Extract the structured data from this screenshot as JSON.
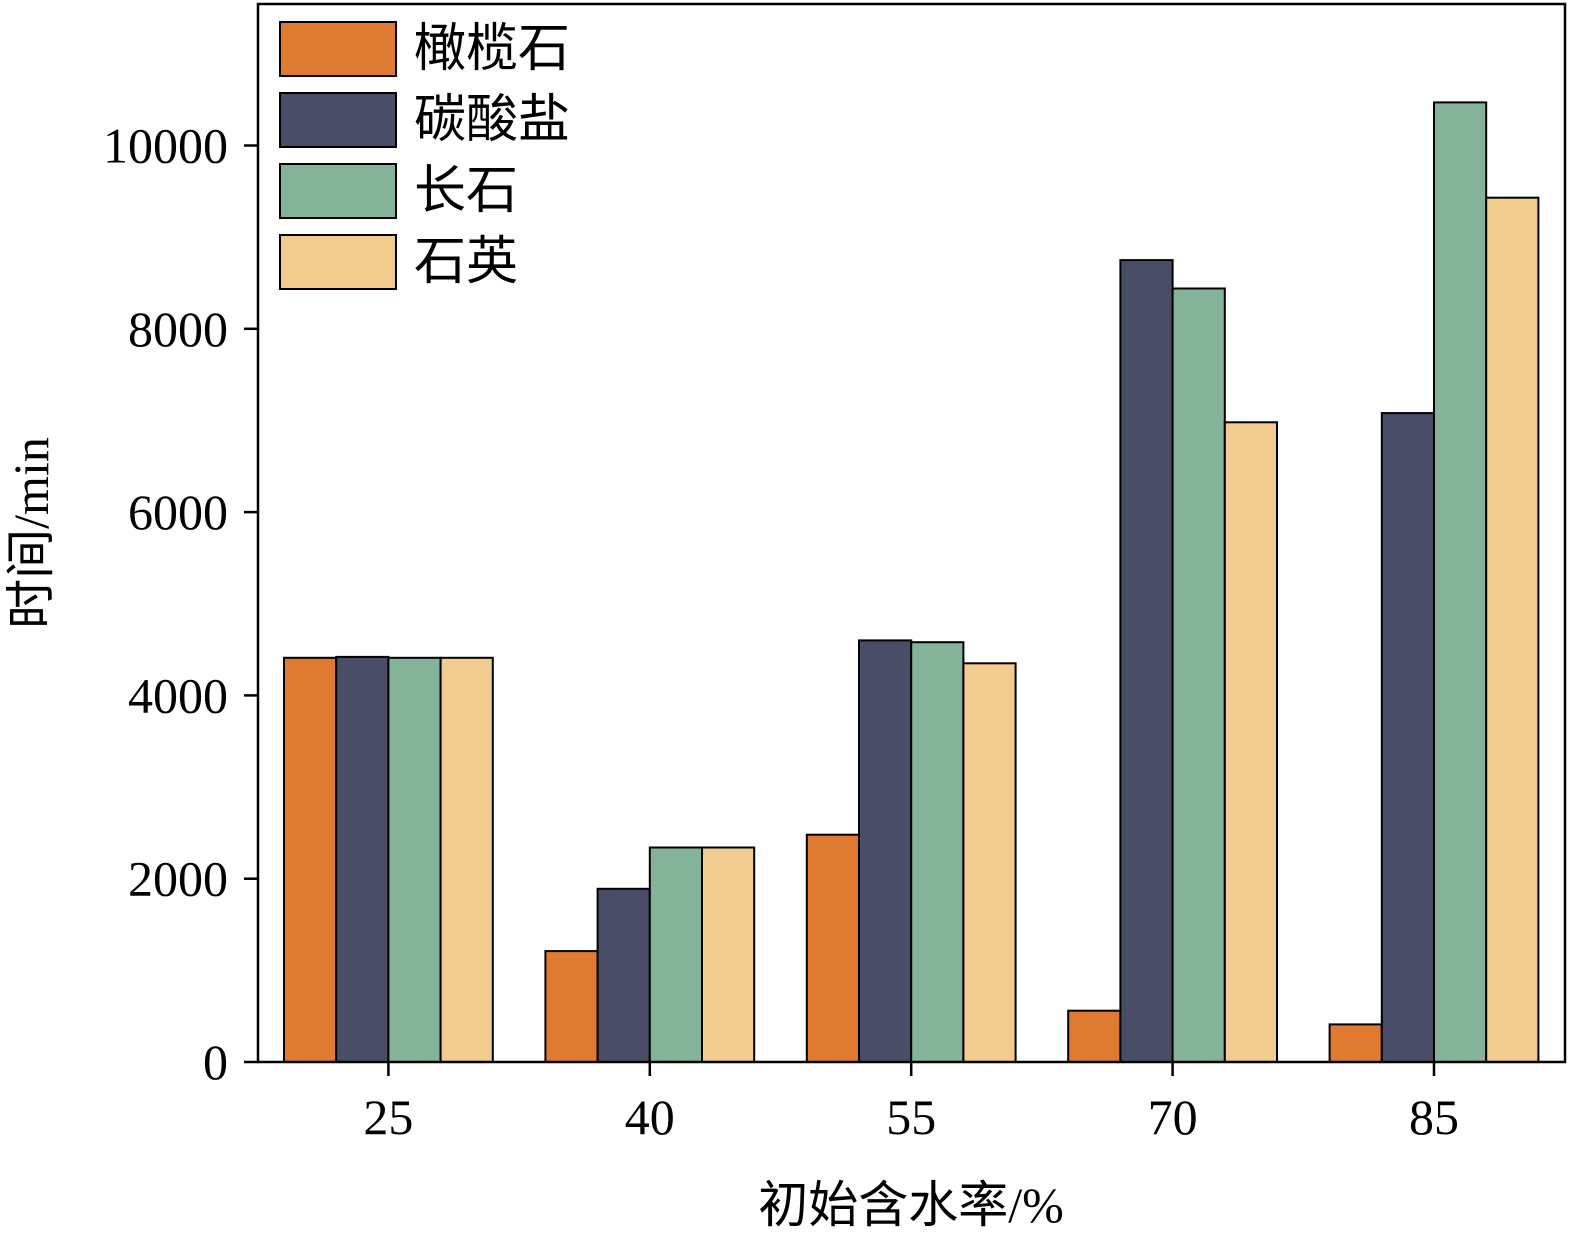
{
  "chart_data": {
    "type": "bar",
    "xlabel": "初始含水率/%",
    "ylabel": "时间/min",
    "categories": [
      "25",
      "40",
      "55",
      "70",
      "85"
    ],
    "ylim": [
      0,
      11500
    ],
    "yticks": [
      0,
      2000,
      4000,
      6000,
      8000,
      10000
    ],
    "legend_position": "top-left",
    "grid": false,
    "series": [
      {
        "name": "橄榄石",
        "color": "#de7b31",
        "values": [
          4410,
          1210,
          2480,
          560,
          410
        ]
      },
      {
        "name": "碳酸盐",
        "color": "#4a4d68",
        "values": [
          4420,
          1890,
          4600,
          8750,
          7080
        ]
      },
      {
        "name": "长石",
        "color": "#84b39a",
        "values": [
          4410,
          2340,
          4580,
          8440,
          10470
        ]
      },
      {
        "name": "石英",
        "color": "#f2cb8e",
        "values": [
          4410,
          2340,
          4350,
          6980,
          9430
        ]
      }
    ]
  }
}
